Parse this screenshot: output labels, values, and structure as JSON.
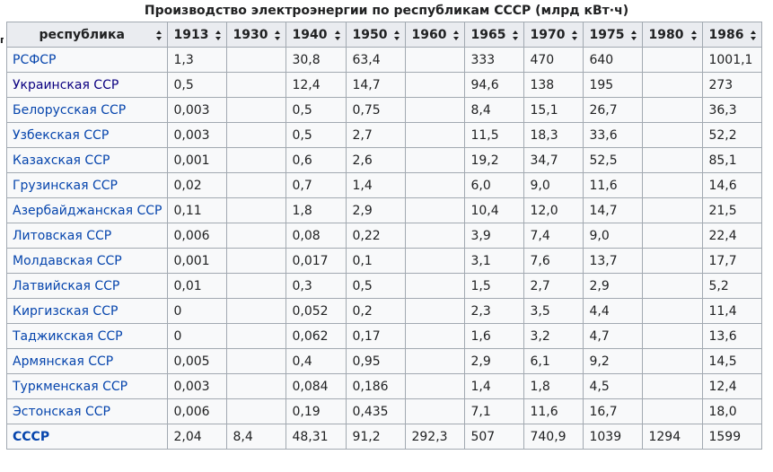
{
  "table": {
    "caption": "Производство электроэнергии по республикам СССР (млрд кВт·ч)",
    "edge_fragment": "п",
    "columns": [
      "республика",
      "1913",
      "1930",
      "1940",
      "1950",
      "1960",
      "1965",
      "1970",
      "1975",
      "1980",
      "1986"
    ],
    "rows": [
      {
        "name": "РСФСР",
        "visited": false,
        "bold": false,
        "values": [
          "1,3",
          "",
          "30,8",
          "63,4",
          "",
          "333",
          "470",
          "640",
          "",
          "1001,1"
        ]
      },
      {
        "name": "Украинская ССР",
        "visited": true,
        "bold": false,
        "values": [
          "0,5",
          "",
          "12,4",
          "14,7",
          "",
          "94,6",
          "138",
          "195",
          "",
          "273"
        ]
      },
      {
        "name": "Белорусская ССР",
        "visited": false,
        "bold": false,
        "values": [
          "0,003",
          "",
          "0,5",
          "0,75",
          "",
          "8,4",
          "15,1",
          "26,7",
          "",
          "36,3"
        ]
      },
      {
        "name": "Узбекская ССР",
        "visited": false,
        "bold": false,
        "values": [
          "0,003",
          "",
          "0,5",
          "2,7",
          "",
          "11,5",
          "18,3",
          "33,6",
          "",
          "52,2"
        ]
      },
      {
        "name": "Казахская ССР",
        "visited": false,
        "bold": false,
        "values": [
          "0,001",
          "",
          "0,6",
          "2,6",
          "",
          "19,2",
          "34,7",
          "52,5",
          "",
          "85,1"
        ]
      },
      {
        "name": "Грузинская ССР",
        "visited": false,
        "bold": false,
        "values": [
          "0,02",
          "",
          "0,7",
          "1,4",
          "",
          "6,0",
          "9,0",
          "11,6",
          "",
          "14,6"
        ]
      },
      {
        "name": "Азербайджанская ССР",
        "visited": false,
        "bold": false,
        "values": [
          "0,11",
          "",
          "1,8",
          "2,9",
          "",
          "10,4",
          "12,0",
          "14,7",
          "",
          "21,5"
        ]
      },
      {
        "name": "Литовская ССР",
        "visited": false,
        "bold": false,
        "values": [
          "0,006",
          "",
          "0,08",
          "0,22",
          "",
          "3,9",
          "7,4",
          "9,0",
          "",
          "22,4"
        ]
      },
      {
        "name": "Молдавская ССР",
        "visited": false,
        "bold": false,
        "values": [
          "0,001",
          "",
          "0,017",
          "0,1",
          "",
          "3,1",
          "7,6",
          "13,7",
          "",
          "17,7"
        ]
      },
      {
        "name": "Латвийская ССР",
        "visited": false,
        "bold": false,
        "values": [
          "0,01",
          "",
          "0,3",
          "0,5",
          "",
          "1,5",
          "2,7",
          "2,9",
          "",
          "5,2"
        ]
      },
      {
        "name": "Киргизская ССР",
        "visited": false,
        "bold": false,
        "values": [
          "0",
          "",
          "0,052",
          "0,2",
          "",
          "2,3",
          "3,5",
          "4,4",
          "",
          "11,4"
        ]
      },
      {
        "name": "Таджикская ССР",
        "visited": false,
        "bold": false,
        "values": [
          "0",
          "",
          "0,062",
          "0,17",
          "",
          "1,6",
          "3,2",
          "4,7",
          "",
          "13,6"
        ]
      },
      {
        "name": "Армянская ССР",
        "visited": false,
        "bold": false,
        "values": [
          "0,005",
          "",
          "0,4",
          "0,95",
          "",
          "2,9",
          "6,1",
          "9,2",
          "",
          "14,5"
        ]
      },
      {
        "name": "Туркменская ССР",
        "visited": false,
        "bold": false,
        "values": [
          "0,003",
          "",
          "0,084",
          "0,186",
          "",
          "1,4",
          "1,8",
          "4,5",
          "",
          "12,4"
        ]
      },
      {
        "name": "Эстонская ССР",
        "visited": false,
        "bold": false,
        "values": [
          "0,006",
          "",
          "0,19",
          "0,435",
          "",
          "7,1",
          "11,6",
          "16,7",
          "",
          "18,0"
        ]
      },
      {
        "name": "СССР",
        "visited": false,
        "bold": true,
        "values": [
          "2,04",
          "8,4",
          "48,31",
          "91,2",
          "292,3",
          "507",
          "740,9",
          "1039",
          "1294",
          "1599"
        ]
      }
    ]
  },
  "colors": {
    "link": "#0645ad",
    "link_visited": "#0b0080",
    "header_bg": "#eaecf0",
    "cell_bg": "#f8f9fa",
    "border": "#a2a9b1"
  }
}
